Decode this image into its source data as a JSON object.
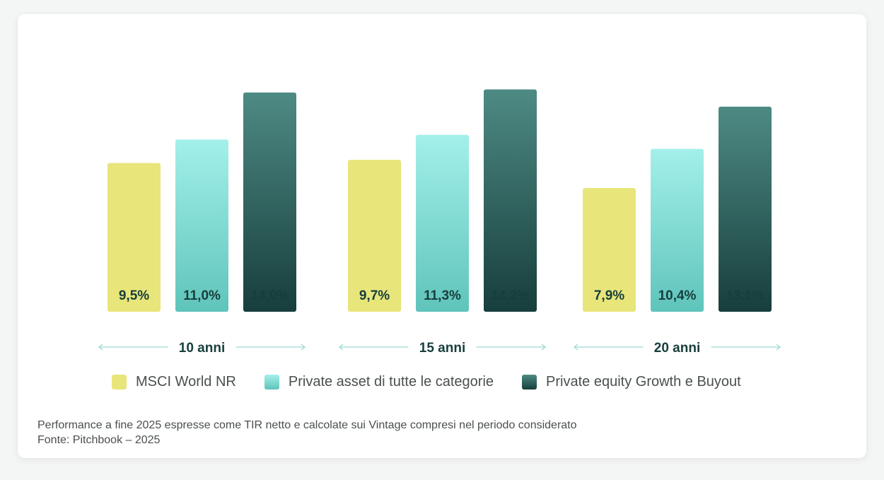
{
  "colors": {
    "msci": "#e8e57a",
    "private_light": "#a3f0ea",
    "private_dark": "#5fc4bb",
    "pe_light": "#4e8a84",
    "pe_dark": "#173e3c",
    "arrow": "#9adad5",
    "label": "#173e3c"
  },
  "chart_data": {
    "type": "bar",
    "categories": [
      "10 anni",
      "15 anni",
      "20 anni"
    ],
    "series": [
      {
        "name": "MSCI World NR",
        "values": [
          9.5,
          9.7,
          7.9
        ],
        "labels": [
          "9,5%",
          "9,7%",
          "7,9%"
        ]
      },
      {
        "name": "Private asset di tutte le categorie",
        "values": [
          11.0,
          11.3,
          10.4
        ],
        "labels": [
          "11,0%",
          "11,3%",
          "10,4%"
        ]
      },
      {
        "name": "Private equity Growth e Buyout",
        "values": [
          14.0,
          14.2,
          13.1
        ],
        "labels": [
          "14,0%",
          "14,2%",
          "13,1%"
        ]
      }
    ],
    "ylim": [
      0,
      16
    ],
    "grid": false,
    "legend_position": "bottom"
  },
  "legend": [
    {
      "label": "MSCI World NR"
    },
    {
      "label": "Private asset di tutte le categorie"
    },
    {
      "label": "Private equity Growth e Buyout"
    }
  ],
  "footnote": {
    "line1": "Performance a fine 2025 espresse come TIR netto e calcolate sui Vintage compresi nel periodo considerato",
    "line2": "Fonte: Pitchbook  –  2025"
  }
}
